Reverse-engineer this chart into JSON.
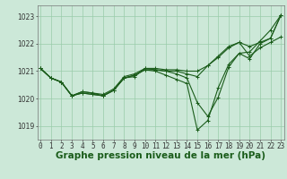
{
  "background_color": "#cce8d8",
  "grid_color": "#99ccaa",
  "line_color": "#1a5c1a",
  "marker_color": "#1a5c1a",
  "xlabel": "Graphe pression niveau de la mer (hPa)",
  "xlabel_fontsize": 7.5,
  "ylim": [
    1018.5,
    1023.4
  ],
  "yticks": [
    1019,
    1020,
    1021,
    1022,
    1023
  ],
  "xticks": [
    0,
    1,
    2,
    3,
    4,
    5,
    6,
    7,
    8,
    9,
    10,
    11,
    12,
    13,
    14,
    15,
    16,
    17,
    18,
    19,
    20,
    21,
    22,
    23
  ],
  "series": [
    [
      1021.1,
      1020.75,
      1020.6,
      1020.1,
      1020.2,
      1020.15,
      1020.1,
      1020.3,
      1020.75,
      1020.8,
      1021.1,
      1021.1,
      1021.05,
      1021.05,
      1021.0,
      1021.0,
      1021.2,
      1021.5,
      1021.85,
      1022.05,
      1021.9,
      1022.05,
      1022.2,
      1023.05
    ],
    [
      1021.1,
      1020.75,
      1020.6,
      1020.1,
      1020.2,
      1020.15,
      1020.1,
      1020.3,
      1020.75,
      1020.85,
      1021.05,
      1021.05,
      1021.0,
      1021.0,
      1020.9,
      1020.8,
      1021.2,
      1021.55,
      1021.9,
      1022.05,
      1021.55,
      1021.85,
      1022.05,
      1022.25
    ],
    [
      1021.1,
      1020.75,
      1020.6,
      1020.1,
      1020.25,
      1020.2,
      1020.15,
      1020.35,
      1020.8,
      1020.9,
      1021.1,
      1021.05,
      1021.0,
      1020.9,
      1020.75,
      1019.85,
      1019.35,
      1020.05,
      1021.15,
      1021.65,
      1021.7,
      1022.1,
      1022.5,
      1023.05
    ],
    [
      1021.1,
      1020.75,
      1020.6,
      1020.1,
      1020.25,
      1020.2,
      1020.1,
      1020.3,
      1020.75,
      1020.85,
      1021.05,
      1021.0,
      1020.85,
      1020.7,
      1020.55,
      1018.85,
      1019.2,
      1020.4,
      1021.25,
      1021.65,
      1021.45,
      1022.0,
      1022.2,
      1023.05
    ]
  ],
  "marker_size": 2.5,
  "linewidth": 0.8,
  "tick_fontsize": 5.5
}
